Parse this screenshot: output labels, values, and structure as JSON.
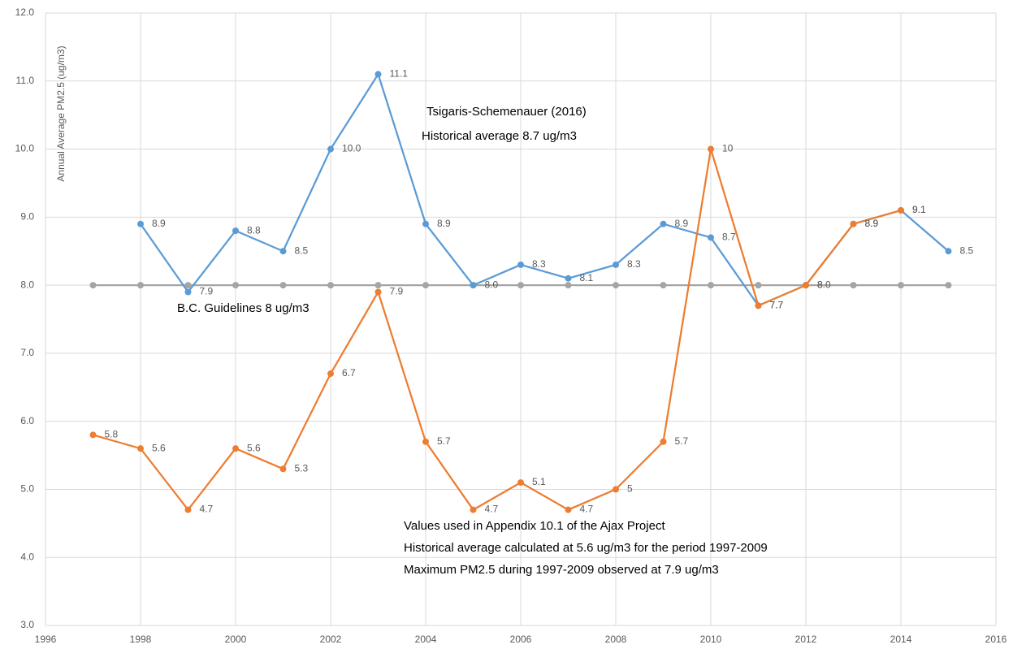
{
  "chart_data": {
    "type": "line",
    "y_label": "Annual Average  PM2.5 (ug/m3)",
    "x": [
      1997,
      1998,
      1999,
      2000,
      2001,
      2002,
      2003,
      2004,
      2005,
      2006,
      2007,
      2008,
      2009,
      2010,
      2011,
      2012,
      2013,
      2014,
      2015
    ],
    "xlim": [
      1996,
      2016
    ],
    "xticks": [
      1996,
      1998,
      2000,
      2002,
      2004,
      2006,
      2008,
      2010,
      2012,
      2014,
      2016
    ],
    "ylim": [
      3,
      12
    ],
    "yticks": [
      {
        "value": 3,
        "label": "3.0"
      },
      {
        "value": 4,
        "label": "4.0"
      },
      {
        "value": 5,
        "label": "5.0"
      },
      {
        "value": 6,
        "label": "6.0"
      },
      {
        "value": 7,
        "label": "7.0"
      },
      {
        "value": 8,
        "label": "8.0"
      },
      {
        "value": 9,
        "label": "9.0"
      },
      {
        "value": 10,
        "label": "10.0"
      },
      {
        "value": 11,
        "label": "11.0"
      },
      {
        "value": 12,
        "label": "12.0"
      }
    ],
    "grid": true,
    "series": [
      {
        "color": "#5b9bd5",
        "values": [
          null,
          8.9,
          7.9,
          8.8,
          8.5,
          10.0,
          11.1,
          8.9,
          8.0,
          8.3,
          8.1,
          8.3,
          8.9,
          8.7,
          7.7,
          8.0,
          8.9,
          9.1,
          8.5
        ],
        "value_labels": [
          null,
          "8.9",
          "7.9",
          "8.8",
          "8.5",
          "10.0",
          "11.1",
          "8.9",
          "8.0",
          "8.3",
          "8.1",
          "8.3",
          "8.9",
          "8.7",
          "7.7",
          "8.0",
          "8.9",
          "9.1",
          "8.5"
        ]
      },
      {
        "color": "#ed7d31",
        "values": [
          5.8,
          5.6,
          4.7,
          5.6,
          5.3,
          6.7,
          7.9,
          5.7,
          4.7,
          5.1,
          4.7,
          5,
          5.7,
          10,
          7.7,
          8,
          8.9,
          9.1,
          null
        ],
        "value_labels": [
          "5.8",
          "5.6",
          "4.7",
          "5.6",
          "5.3",
          "6.7",
          "7.9",
          "5.7",
          "4.7",
          "5.1",
          "4.7",
          "5",
          "5.7",
          "10",
          "7.7",
          "8",
          "8.9",
          "9.1",
          null
        ]
      },
      {
        "color": "#a5a5a5",
        "values": [
          8,
          8,
          8,
          8,
          8,
          8,
          8,
          8,
          8,
          8,
          8,
          8,
          8,
          8,
          8,
          8,
          8,
          8,
          8
        ]
      }
    ],
    "annotations": [
      "Tsigaris-Schemenauer (2016)",
      "Historical average 8.7 ug/m3",
      "B.C. Guidelines 8 ug/m3",
      "Values used in Appendix 10.1 of the Ajax Project",
      "Historical average calculated at 5.6 ug/m3 for the period 1997-2009",
      "Maximum PM2.5 during 1997-2009  observed at 7.9 ug/m3"
    ]
  }
}
